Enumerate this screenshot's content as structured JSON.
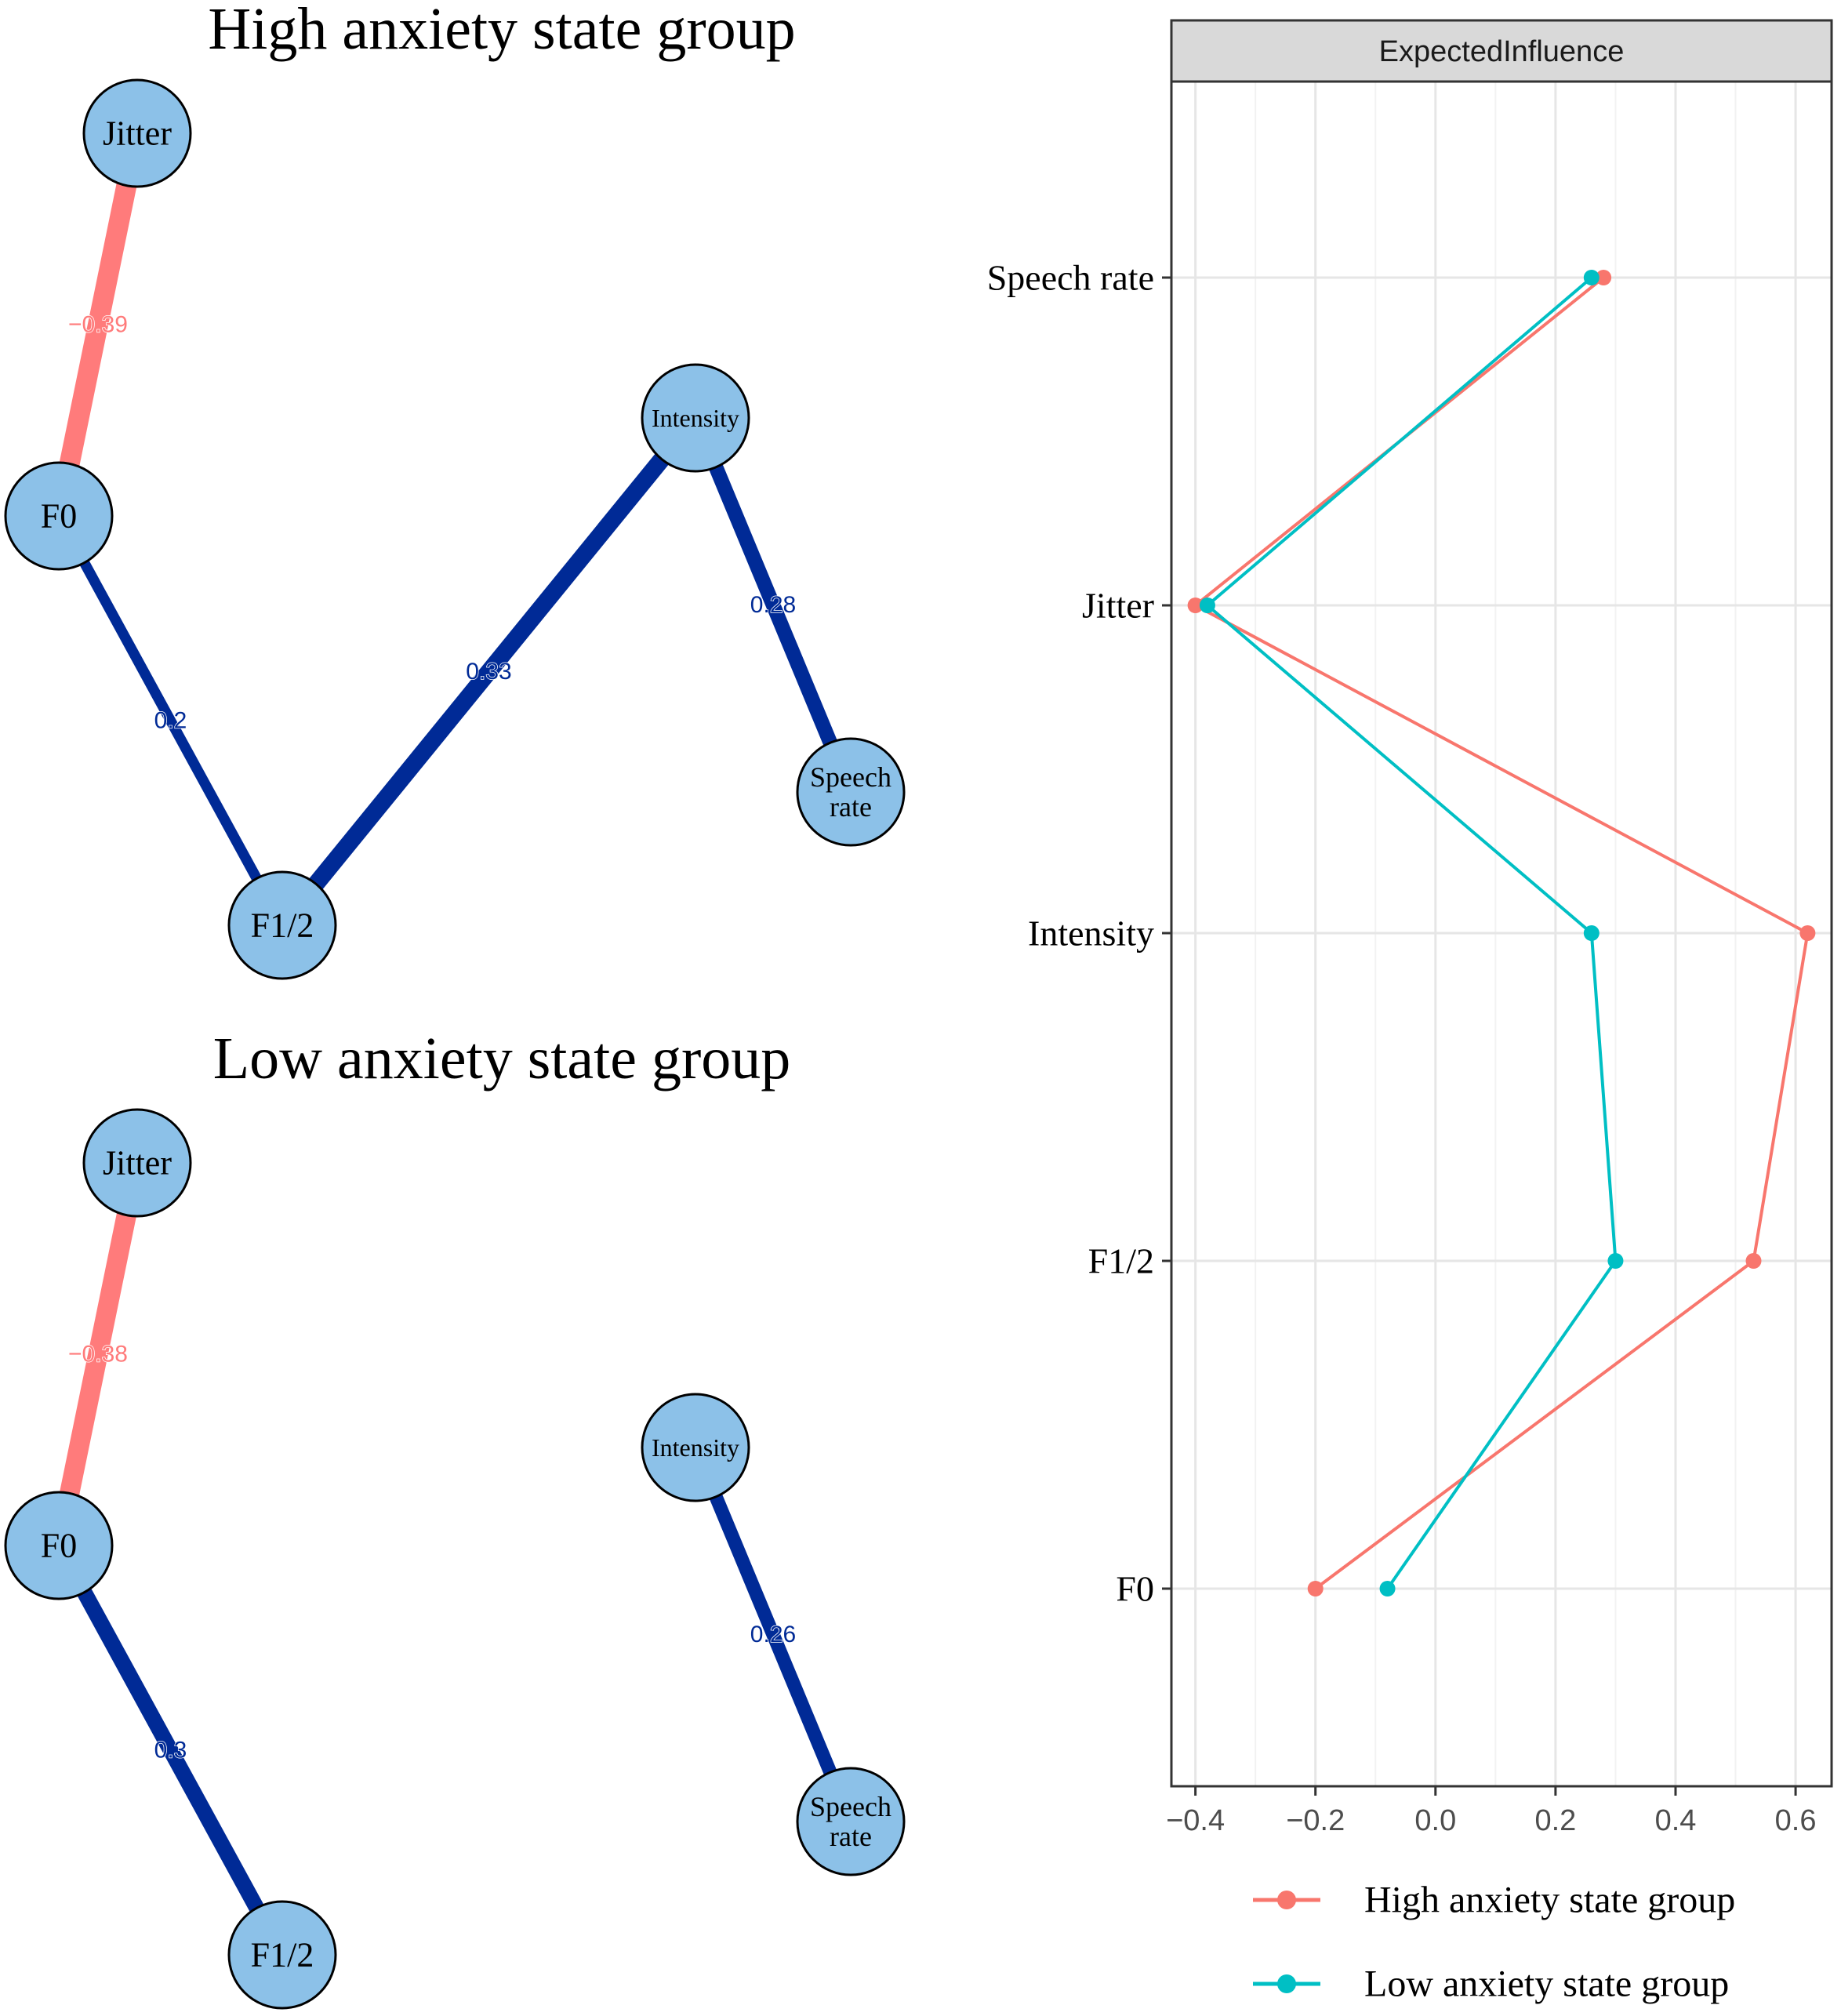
{
  "networks": [
    {
      "title": "High anxiety state group",
      "nodes": [
        {
          "id": "jitter",
          "lines": [
            "Jitter"
          ]
        },
        {
          "id": "f0",
          "lines": [
            "F0"
          ]
        },
        {
          "id": "intensity",
          "lines": [
            "Intensity"
          ]
        },
        {
          "id": "speech",
          "lines": [
            "Speech",
            "rate"
          ]
        },
        {
          "id": "f12",
          "lines": [
            "F1/2"
          ]
        }
      ],
      "edges": [
        {
          "from": "jitter",
          "to": "f0",
          "weight": -0.39,
          "label": "−0.39"
        },
        {
          "from": "f0",
          "to": "f12",
          "weight": 0.2,
          "label": "0.2"
        },
        {
          "from": "f12",
          "to": "intensity",
          "weight": 0.33,
          "label": "0.33"
        },
        {
          "from": "intensity",
          "to": "speech",
          "weight": 0.28,
          "label": "0.28"
        }
      ]
    },
    {
      "title": "Low anxiety state group",
      "nodes": [
        {
          "id": "jitter",
          "lines": [
            "Jitter"
          ]
        },
        {
          "id": "f0",
          "lines": [
            "F0"
          ]
        },
        {
          "id": "intensity",
          "lines": [
            "Intensity"
          ]
        },
        {
          "id": "speech",
          "lines": [
            "Speech",
            "rate"
          ]
        },
        {
          "id": "f12",
          "lines": [
            "F1/2"
          ]
        }
      ],
      "edges": [
        {
          "from": "jitter",
          "to": "f0",
          "weight": -0.38,
          "label": "−0.38"
        },
        {
          "from": "f0",
          "to": "f12",
          "weight": 0.3,
          "label": "0.3"
        },
        {
          "from": "intensity",
          "to": "speech",
          "weight": 0.26,
          "label": "0.26"
        }
      ]
    }
  ],
  "chart_data": {
    "type": "line",
    "strip_title": "ExpectedInfluence",
    "categories": [
      "Speech rate",
      "Jitter",
      "Intensity",
      "F1/2",
      "F0"
    ],
    "x_ticks": [
      -0.4,
      -0.2,
      0.0,
      0.2,
      0.4,
      0.6
    ],
    "x_tick_labels": [
      "−0.4",
      "−0.2",
      "0.0",
      "0.2",
      "0.4",
      "0.6"
    ],
    "xlim": [
      -0.44,
      0.66
    ],
    "grid": true,
    "legend_position": "bottom",
    "series": [
      {
        "name": "High anxiety state group",
        "color": "#F8766D",
        "values": [
          0.28,
          -0.4,
          0.62,
          0.53,
          -0.2
        ]
      },
      {
        "name": "Low anxiety state group",
        "color": "#00BFC4",
        "values": [
          0.26,
          -0.38,
          0.26,
          0.3,
          -0.08
        ]
      }
    ]
  },
  "colors": {
    "positive_edge": "#002A96",
    "negative_edge": "#FF7B7B",
    "node_fill": "#8CC1E8",
    "strip_fill": "#D9D9D9"
  }
}
